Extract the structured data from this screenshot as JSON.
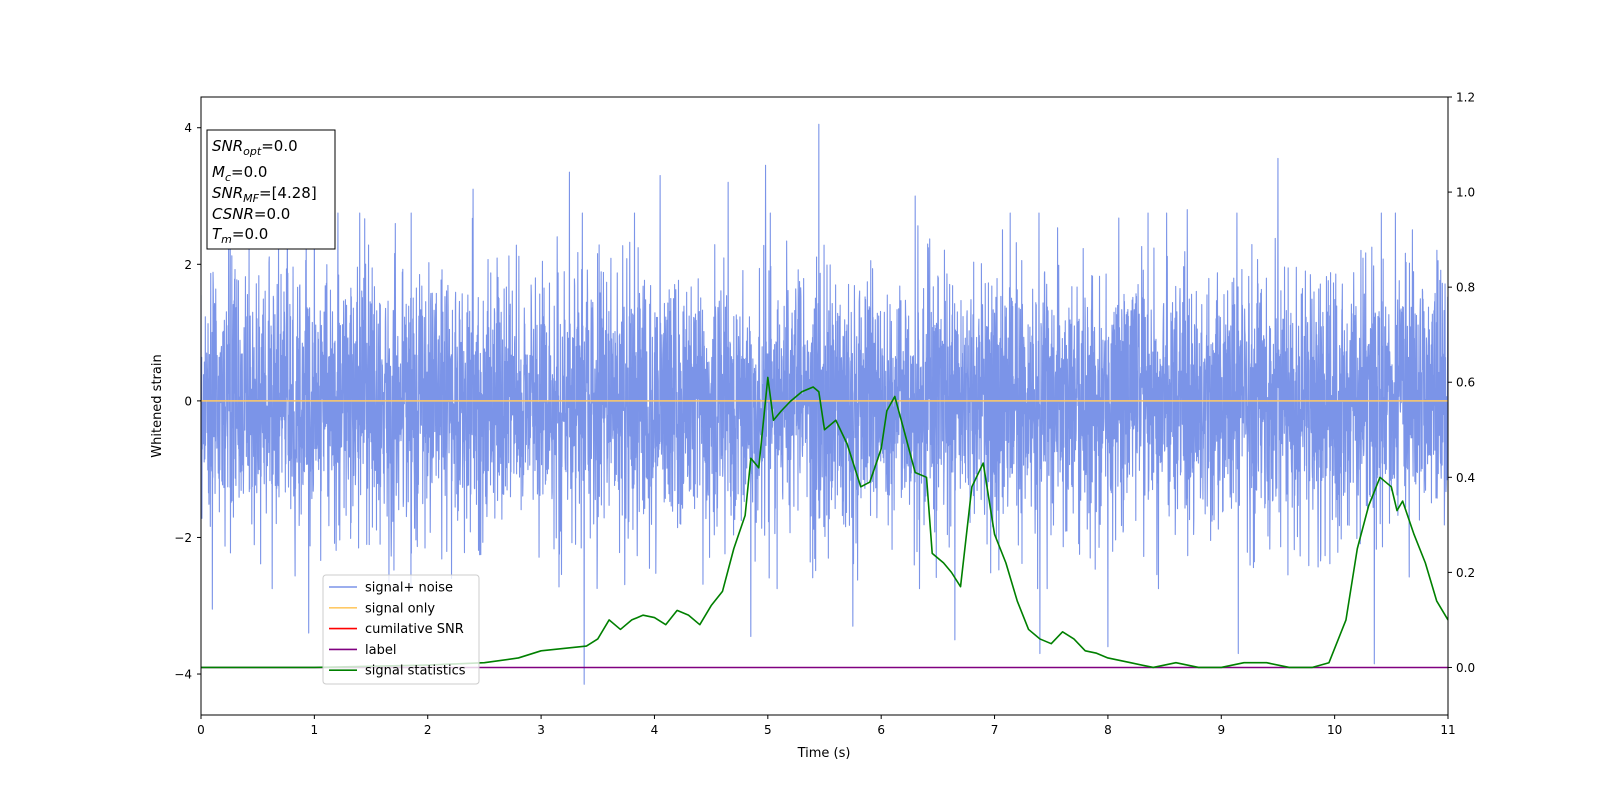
{
  "chart_data": {
    "type": "line",
    "xlabel": "Time (s)",
    "ylabel": "Whitened strain",
    "xlim": [
      0,
      11
    ],
    "ylim": [
      -4.6,
      4.45
    ],
    "y2lim": [
      -0.1,
      1.2
    ],
    "xticks": [
      "0",
      "1",
      "2",
      "3",
      "4",
      "5",
      "6",
      "7",
      "8",
      "9",
      "10",
      "11"
    ],
    "xtick_values": [
      0,
      1,
      2,
      3,
      4,
      5,
      6,
      7,
      8,
      9,
      10,
      11
    ],
    "yticks": [
      "−4",
      "−2",
      "0",
      "2",
      "4"
    ],
    "ytick_values": [
      -4,
      -2,
      0,
      2,
      4
    ],
    "y2ticks": [
      "0.0",
      "0.2",
      "0.4",
      "0.6",
      "0.8",
      "1.0",
      "1.2"
    ],
    "y2tick_values": [
      0.0,
      0.2,
      0.4,
      0.6,
      0.8,
      1.0,
      1.2
    ],
    "legend_position": "lower-left",
    "annotation_lines": [
      {
        "var": "SNR",
        "sub": "opt",
        "value": "=0.0"
      },
      {
        "var": "M",
        "sub": "c",
        "value": "=0.0"
      },
      {
        "var": "SNR",
        "sub": "MF",
        "value": "=[4.28]"
      },
      {
        "var": "CSNR",
        "sub": "",
        "value": "=0.0"
      },
      {
        "var": "T",
        "sub": "m",
        "value": "=0.0"
      }
    ],
    "series": [
      {
        "name": "signal+ noise",
        "color": "#7b94e8",
        "axis": "left",
        "kind": "noise",
        "duration": 11,
        "sigma": 0.95,
        "max": 4.05,
        "min": -4.15,
        "peaks": [
          [
            1.0,
            2.9
          ],
          [
            2.4,
            3.1
          ],
          [
            3.25,
            3.35
          ],
          [
            4.05,
            3.3
          ],
          [
            4.65,
            3.2
          ],
          [
            4.98,
            3.45
          ],
          [
            5.45,
            4.05
          ],
          [
            6.3,
            3.0
          ],
          [
            8.7,
            2.8
          ],
          [
            9.5,
            3.55
          ],
          [
            10.35,
            3.05
          ]
        ],
        "troughs": [
          [
            0.1,
            -3.05
          ],
          [
            0.95,
            -3.4
          ],
          [
            3.38,
            -4.15
          ],
          [
            4.85,
            -3.45
          ],
          [
            5.75,
            -3.3
          ],
          [
            6.65,
            -3.5
          ],
          [
            7.4,
            -3.7
          ],
          [
            8.0,
            -3.6
          ],
          [
            9.15,
            -3.7
          ],
          [
            10.35,
            -3.85
          ]
        ]
      },
      {
        "name": "signal only",
        "color": "#ffc966",
        "axis": "left",
        "kind": "constant",
        "value": 0
      },
      {
        "name": "cumilative SNR",
        "color": "#ff0000",
        "axis": "right",
        "kind": "points",
        "x": [],
        "y": []
      },
      {
        "name": "label",
        "color": "#800080",
        "axis": "right",
        "kind": "constant",
        "value": 0
      },
      {
        "name": "signal statistics",
        "color": "#008000",
        "axis": "right",
        "kind": "points",
        "x": [
          0,
          1,
          2,
          2.5,
          2.8,
          3.0,
          3.2,
          3.4,
          3.5,
          3.6,
          3.7,
          3.8,
          3.9,
          4.0,
          4.1,
          4.2,
          4.3,
          4.4,
          4.5,
          4.6,
          4.7,
          4.8,
          4.85,
          4.92,
          5.0,
          5.05,
          5.12,
          5.2,
          5.3,
          5.4,
          5.45,
          5.5,
          5.6,
          5.7,
          5.82,
          5.9,
          6.0,
          6.05,
          6.12,
          6.2,
          6.3,
          6.4,
          6.45,
          6.55,
          6.62,
          6.7,
          6.8,
          6.9,
          7.0,
          7.1,
          7.2,
          7.3,
          7.4,
          7.5,
          7.6,
          7.7,
          7.8,
          7.9,
          8.0,
          8.2,
          8.4,
          8.6,
          8.8,
          9.0,
          9.2,
          9.4,
          9.6,
          9.8,
          9.95,
          10.0,
          10.1,
          10.2,
          10.3,
          10.4,
          10.5,
          10.55,
          10.6,
          10.7,
          10.8,
          10.9,
          11.0
        ],
        "y": [
          0.0,
          0.0,
          0.005,
          0.01,
          0.02,
          0.035,
          0.04,
          0.045,
          0.06,
          0.1,
          0.08,
          0.1,
          0.11,
          0.105,
          0.09,
          0.12,
          0.11,
          0.09,
          0.13,
          0.16,
          0.25,
          0.32,
          0.44,
          0.42,
          0.61,
          0.52,
          0.54,
          0.56,
          0.58,
          0.59,
          0.58,
          0.5,
          0.52,
          0.47,
          0.38,
          0.39,
          0.46,
          0.54,
          0.57,
          0.5,
          0.41,
          0.4,
          0.24,
          0.22,
          0.2,
          0.17,
          0.38,
          0.43,
          0.28,
          0.22,
          0.14,
          0.08,
          0.06,
          0.05,
          0.075,
          0.06,
          0.035,
          0.03,
          0.02,
          0.01,
          0.0,
          0.01,
          0.0,
          0.0,
          0.01,
          0.01,
          0.0,
          0.0,
          0.01,
          0.04,
          0.1,
          0.25,
          0.34,
          0.4,
          0.38,
          0.33,
          0.35,
          0.28,
          0.22,
          0.14,
          0.1
        ]
      }
    ]
  }
}
